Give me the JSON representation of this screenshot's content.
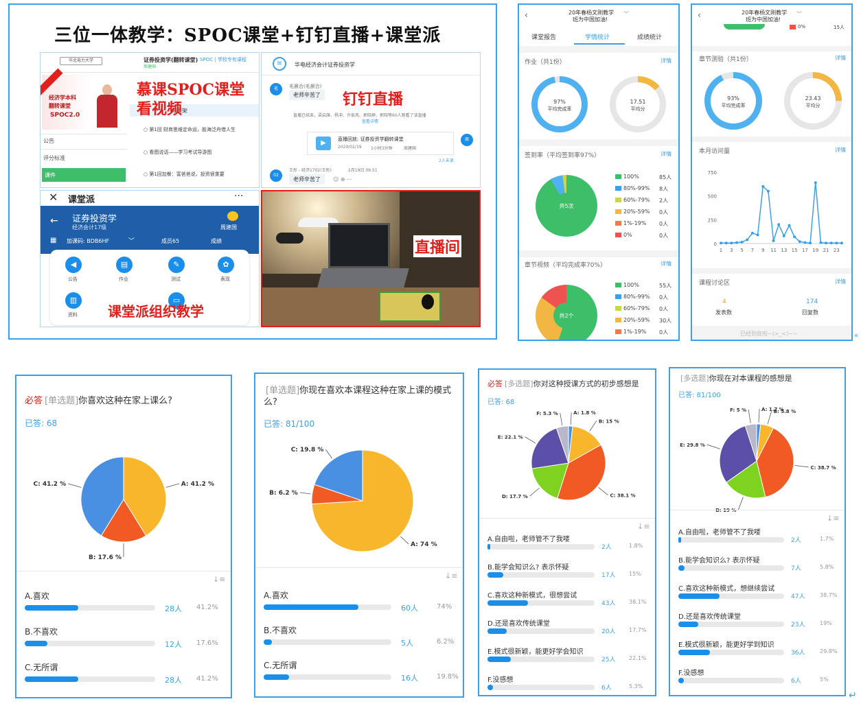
{
  "collage_title": "三位一体教学：SPOC课堂+钉钉直播+课堂派",
  "spoc_panel": {
    "course_header": "证券投资学(翻转课堂)",
    "course_tag": "SPOC | 学校专有课程",
    "course_teacher": "周建国",
    "cover_text_1": "经济学本科",
    "cover_text_2": "翻转课堂",
    "cover_text_3": "SPOC2.0",
    "overlay_label_1": "慕课SPOC课堂",
    "overlay_label_2": "看视频",
    "sidebar": [
      "公告",
      "评分标准",
      "课件"
    ],
    "lessons": [
      "与框架",
      "第1回 财商思维定命运，股海泛舟借人生",
      "看图说话——学习考试导游图",
      "第1回加餐：富爸爸说，投资很重要"
    ]
  },
  "dingtalk_panel": {
    "group_name": "华电经济会计证券投资学",
    "overlay_label": "钉钉直播",
    "msg_sender": "毛晨合(毛晨合)",
    "msg_text": "老师辛苦了",
    "live_notice": "直播已结束，梁启旗、杨冲、许俊风、郭晓婷、郭晓等60人观看了该直播",
    "view_detail": "查看详情",
    "replay_title": "直播回放: 证券投资学翻转课堂",
    "replay_date": "2020/02/19",
    "replay_time": "1小时3分钟",
    "replay_author": "周建国",
    "unread": "2人未读",
    "msg2_sender": "王彤 - 经济1702(王彤)",
    "msg2_time": "2月19日 09:51",
    "msg2_text": "老师辛苦了"
  },
  "ketangpai_panel": {
    "window_title": "课堂派",
    "course_name": "证券投资学",
    "class_name": "经济会计17级",
    "teacher": "周建国",
    "join_code": "加课码: BDB6HF",
    "members": "成员65",
    "grades": "成绩",
    "tools": [
      "公告",
      "作业",
      "测试",
      "表现",
      "资料"
    ],
    "overlay_label": "课堂派组织教学"
  },
  "studio_panel": {
    "overlay_label": "直播间"
  },
  "stats_left": {
    "header_title_1": "20年春杨文刚教学",
    "header_title_2": "班为中国加油!",
    "tabs": [
      "课堂报告",
      "学情统计",
      "成绩统计"
    ],
    "homework_label": "作业（共1份）",
    "detail": "详情",
    "homework_completion": "97%",
    "homework_completion_label": "平均完成率",
    "homework_score": "17.51",
    "homework_score_label": "平均分",
    "attendance_label": "签到率（平均签到率97%）",
    "attendance_center": "共5次",
    "attendance_legend": [
      {
        "label": "100%",
        "count": "85人",
        "color": "#3dbf6a"
      },
      {
        "label": "80%-99%",
        "count": "8人",
        "color": "#3aa0e8"
      },
      {
        "label": "60%-79%",
        "count": "2人",
        "color": "#c8d64a"
      },
      {
        "label": "20%-59%",
        "count": "0人",
        "color": "#f2b642"
      },
      {
        "label": "1%-19%",
        "count": "0人",
        "color": "#f07a4a"
      },
      {
        "label": "0%",
        "count": "0人",
        "color": "#ef5350"
      }
    ],
    "video_label": "章节视频（平均完成率70%）",
    "video_center": "共2个",
    "video_legend": [
      {
        "label": "100%",
        "count": "55人",
        "color": "#3dbf6a"
      },
      {
        "label": "80%-99%",
        "count": "0人",
        "color": "#3aa0e8"
      },
      {
        "label": "60%-79%",
        "count": "0人",
        "color": "#c8d64a"
      },
      {
        "label": "20%-59%",
        "count": "30人",
        "color": "#f2b642"
      },
      {
        "label": "1%-19%",
        "count": "0人",
        "color": "#f07a4a"
      },
      {
        "label": "0%",
        "count": "15人",
        "color": "#ef5350"
      }
    ]
  },
  "stats_right": {
    "header_title_1": "20年春杨文刚教学",
    "header_title_2": "班为中国加油!",
    "top_peek_left": "0%",
    "top_peek_right": "15人",
    "quiz_label": "章节测验（共1份）",
    "detail": "详情",
    "quiz_completion": "93%",
    "quiz_completion_label": "平均完成率",
    "quiz_score": "23.43",
    "quiz_score_label": "平均分",
    "visits_label": "本月访问量",
    "discussion_label": "课程讨论区",
    "posts": "4",
    "posts_label": "发表数",
    "replies": "174",
    "replies_label": "回复数",
    "bottom_note": "已经到底啦~(>_<)~~"
  },
  "chart_data": [
    {
      "type": "line",
      "title": "本月访问量",
      "x_ticks": [
        "1",
        "3",
        "5",
        "7",
        "9",
        "11",
        "13",
        "15",
        "17",
        "19",
        "21",
        "23"
      ],
      "y_ticks": [
        "0",
        "250",
        "500",
        "750"
      ],
      "ylim": [
        0,
        750
      ],
      "x": [
        1,
        2,
        3,
        4,
        5,
        6,
        7,
        8,
        9,
        10,
        11,
        12,
        13,
        14,
        15,
        16,
        17,
        18,
        19,
        20,
        21,
        22,
        23,
        24
      ],
      "values": [
        5,
        5,
        5,
        10,
        15,
        40,
        110,
        90,
        600,
        550,
        30,
        200,
        80,
        190,
        70,
        20,
        10,
        5,
        640,
        10,
        5,
        5,
        5,
        5
      ]
    },
    {
      "type": "pie",
      "question_required": "必答",
      "question_type": "[单选题]",
      "question": "你喜欢这种在家上课么?",
      "answered": "已答: 68",
      "labels": [
        "A",
        "B",
        "C"
      ],
      "slice_labels": [
        "A: 41.2 %",
        "B: 17.6 %",
        "C: 41.2 %"
      ],
      "values": [
        41.2,
        17.6,
        41.2
      ],
      "colors": [
        "#f8b62d",
        "#f25a24",
        "#4a90e2"
      ],
      "options": [
        {
          "label": "A.喜欢",
          "count": "28人",
          "pct": "41.2%",
          "frac": 0.412
        },
        {
          "label": "B.不喜欢",
          "count": "12人",
          "pct": "17.6%",
          "frac": 0.176
        },
        {
          "label": "C.无所谓",
          "count": "28人",
          "pct": "41.2%",
          "frac": 0.412
        }
      ]
    },
    {
      "type": "pie",
      "question_required": "",
      "question_type": "[单选题]",
      "question": "你现在喜欢本课程这种在家上课的模式么?",
      "answered": "已答: 81/100",
      "labels": [
        "A",
        "B",
        "C"
      ],
      "slice_labels": [
        "A: 74 %",
        "B: 6.2 %",
        "C: 19.8 %"
      ],
      "values": [
        74,
        6.2,
        19.8
      ],
      "colors": [
        "#f8b62d",
        "#f25a24",
        "#4a90e2"
      ],
      "options": [
        {
          "label": "A.喜欢",
          "count": "60人",
          "pct": "74%",
          "frac": 0.74
        },
        {
          "label": "B.不喜欢",
          "count": "5人",
          "pct": "6.2%",
          "frac": 0.062
        },
        {
          "label": "C.无所谓",
          "count": "16人",
          "pct": "19.8%",
          "frac": 0.198
        }
      ]
    },
    {
      "type": "pie",
      "question_required": "必答",
      "question_type": "[多选题]",
      "question": "你对这种授课方式的初步感想是",
      "answered": "已答: 68",
      "labels": [
        "A",
        "B",
        "C",
        "D",
        "E",
        "F"
      ],
      "slice_labels": [
        "A: 1.8 %",
        "B: 15 %",
        "C: 38.1 %",
        "D: 17.7 %",
        "E: 22.1 %",
        "F: 5.3 %"
      ],
      "values": [
        1.8,
        15,
        38.1,
        17.7,
        22.1,
        5.3
      ],
      "colors": [
        "#4a90e2",
        "#f8b62d",
        "#f25a24",
        "#7ed321",
        "#5b4fa8",
        "#b8b8c8"
      ],
      "options": [
        {
          "label": "A.自由啦，老师管不了我喽",
          "count": "2人",
          "pct": "1.8%",
          "frac": 0.018
        },
        {
          "label": "B.能学会知识么? 表示怀疑",
          "count": "17人",
          "pct": "15%",
          "frac": 0.15
        },
        {
          "label": "C.喜欢这种新模式，很想尝试",
          "count": "43人",
          "pct": "38.1%",
          "frac": 0.381
        },
        {
          "label": "D.还是喜欢传统课堂",
          "count": "20人",
          "pct": "17.7%",
          "frac": 0.177
        },
        {
          "label": "E.模式很新颖，能更好学会知识",
          "count": "25人",
          "pct": "22.1%",
          "frac": 0.221
        },
        {
          "label": "F.没感想",
          "count": "6人",
          "pct": "5.3%",
          "frac": 0.053
        }
      ]
    },
    {
      "type": "pie",
      "question_required": "",
      "question_type": "[多选题]",
      "question": "你现在对本课程的感想是",
      "answered": "已答: 81/100",
      "labels": [
        "A",
        "B",
        "C",
        "D",
        "E",
        "F"
      ],
      "slice_labels": [
        "A: 1.7 %",
        "B: 5.8 %",
        "C: 38.7 %",
        "D: 19 %",
        "E: 29.8 %",
        "F: 5 %"
      ],
      "values": [
        1.7,
        5.8,
        38.7,
        19,
        29.8,
        5
      ],
      "colors": [
        "#4a90e2",
        "#f8b62d",
        "#f25a24",
        "#7ed321",
        "#5b4fa8",
        "#b8b8c8"
      ],
      "options": [
        {
          "label": "A.自由啦，老师管不了我喽",
          "count": "2人",
          "pct": "1.7%",
          "frac": 0.017
        },
        {
          "label": "B.能学会知识么? 表示怀疑",
          "count": "7人",
          "pct": "5.8%",
          "frac": 0.058
        },
        {
          "label": "C.喜欢这种新模式，想继续尝试",
          "count": "47人",
          "pct": "38.7%",
          "frac": 0.387
        },
        {
          "label": "D.还是喜欢传统课堂",
          "count": "23人",
          "pct": "19%",
          "frac": 0.19
        },
        {
          "label": "E.模式很新颖，能更好学到知识",
          "count": "36人",
          "pct": "29.8%",
          "frac": 0.298
        },
        {
          "label": "F.没感想",
          "count": "6人",
          "pct": "5%",
          "frac": 0.05
        }
      ]
    }
  ]
}
